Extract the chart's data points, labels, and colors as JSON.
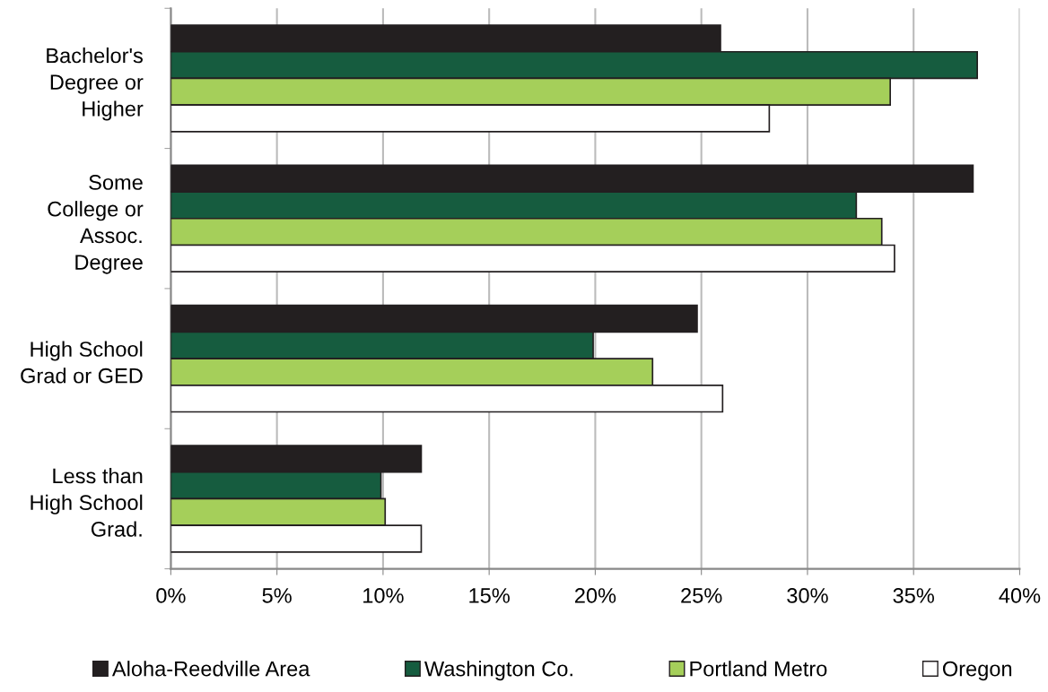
{
  "chart_data": {
    "type": "bar",
    "orientation": "horizontal",
    "categories": [
      "Bachelor's\nDegree or\nHigher",
      "Some\nCollege or\nAssoc.\nDegree",
      "High School\nGrad or GED",
      "Less than\nHigh School\nGrad."
    ],
    "series": [
      {
        "name": "Aloha-Reedville Area",
        "color": "#231f20",
        "values": [
          25.9,
          37.8,
          24.8,
          11.8
        ]
      },
      {
        "name": "Washington Co.",
        "color": "#165c3f",
        "values": [
          38.0,
          32.3,
          19.9,
          9.9
        ]
      },
      {
        "name": "Portland Metro",
        "color": "#a5cf5a",
        "values": [
          33.9,
          33.5,
          22.7,
          10.1
        ]
      },
      {
        "name": "Oregon",
        "color": "#ffffff",
        "values": [
          28.2,
          34.1,
          26.0,
          11.8
        ]
      }
    ],
    "xlim": [
      0,
      40
    ],
    "xticks": [
      {
        "value": 0,
        "label": "0%"
      },
      {
        "value": 5,
        "label": "5%"
      },
      {
        "value": 10,
        "label": "10%"
      },
      {
        "value": 15,
        "label": "15%"
      },
      {
        "value": 20,
        "label": "20%"
      },
      {
        "value": 25,
        "label": "25%"
      },
      {
        "value": 30,
        "label": "30%"
      },
      {
        "value": 35,
        "label": "35%"
      },
      {
        "value": 40,
        "label": "40%"
      }
    ],
    "grid": "x",
    "legend": "bottom"
  }
}
